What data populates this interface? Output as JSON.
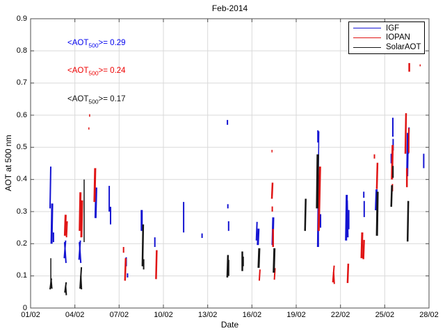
{
  "title": "Feb-2014",
  "axes": {
    "xlabel": "Date",
    "ylabel": "AOT at 500 nm"
  },
  "annotations": [
    {
      "series": "IGF",
      "prefix": "<AOT",
      "sub": "500",
      "suffix": ">= 0.29",
      "value": 0.29,
      "color": "#0000ee"
    },
    {
      "series": "IOPAN",
      "prefix": "<AOT",
      "sub": "500",
      "suffix": ">= 0.24",
      "value": 0.24,
      "color": "#ee0000"
    },
    {
      "series": "SolarAOT",
      "prefix": "<AOT",
      "sub": "500",
      "suffix": ">= 0.17",
      "value": 0.17,
      "color": "#111111"
    }
  ],
  "chart_data": {
    "type": "scatter",
    "title": "Feb-2014",
    "xlabel": "Date",
    "ylabel": "AOT at 500 nm",
    "xlim_days": [
      1,
      28
    ],
    "ylim": [
      0,
      0.9
    ],
    "grid": true,
    "legend_position": "top-right",
    "x_tick_labels": [
      "01/02",
      "04/02",
      "07/02",
      "10/02",
      "13/02",
      "16/02",
      "19/02",
      "22/02",
      "25/02",
      "28/02"
    ],
    "y_tick_labels": [
      "0",
      "0.1",
      "0.2",
      "0.3",
      "0.4",
      "0.5",
      "0.6",
      "0.7",
      "0.8",
      "0.9"
    ],
    "segment_format": [
      "day_of_feb",
      "aot_min",
      "aot_max",
      "px_width",
      "px_slant"
    ],
    "series": [
      {
        "name": "IGF",
        "color": "#1414d2",
        "mean_aot500": 0.29,
        "segments": [
          [
            2.32,
            0.31,
            0.44,
            2,
            1
          ],
          [
            2.42,
            0.2,
            0.325,
            3,
            1
          ],
          [
            2.55,
            0.205,
            0.235,
            2,
            0
          ],
          [
            3.28,
            0.155,
            0.21,
            2,
            2
          ],
          [
            3.4,
            0.14,
            0.205,
            2,
            -2
          ],
          [
            4.28,
            0.15,
            0.21,
            2,
            2
          ],
          [
            4.4,
            0.14,
            0.205,
            2,
            -2
          ],
          [
            5.4,
            0.28,
            0.375,
            3,
            1
          ],
          [
            6.33,
            0.3,
            0.38,
            2,
            0
          ],
          [
            6.42,
            0.26,
            0.315,
            2,
            0
          ],
          [
            7.48,
            0.13,
            0.158,
            2,
            0
          ],
          [
            7.57,
            0.095,
            0.108,
            2,
            0
          ],
          [
            8.53,
            0.24,
            0.305,
            3,
            0
          ],
          [
            9.42,
            0.19,
            0.22,
            2,
            0
          ],
          [
            11.37,
            0.235,
            0.33,
            2,
            0
          ],
          [
            12.62,
            0.218,
            0.232,
            2,
            0
          ],
          [
            14.34,
            0.57,
            0.585,
            2,
            0
          ],
          [
            14.37,
            0.31,
            0.323,
            2,
            0
          ],
          [
            14.42,
            0.24,
            0.27,
            2,
            0
          ],
          [
            16.3,
            0.21,
            0.268,
            2,
            1
          ],
          [
            16.4,
            0.196,
            0.247,
            3,
            1
          ],
          [
            17.4,
            0.196,
            0.282,
            3,
            1
          ],
          [
            20.44,
            0.19,
            0.55,
            1.5,
            2
          ],
          [
            20.47,
            0.515,
            0.553,
            2,
            0
          ],
          [
            20.5,
            0.19,
            0.245,
            2,
            0
          ],
          [
            20.65,
            0.25,
            0.292,
            2,
            0
          ],
          [
            22.38,
            0.21,
            0.352,
            3,
            1
          ],
          [
            22.48,
            0.22,
            0.335,
            3,
            -1
          ],
          [
            22.56,
            0.245,
            0.305,
            2,
            0
          ],
          [
            23.58,
            0.343,
            0.362,
            2,
            0
          ],
          [
            23.61,
            0.283,
            0.333,
            2,
            0
          ],
          [
            24.4,
            0.304,
            0.369,
            3,
            1
          ],
          [
            25.44,
            0.45,
            0.48,
            2,
            0
          ],
          [
            25.55,
            0.533,
            0.592,
            2,
            0
          ],
          [
            25.57,
            0.49,
            0.526,
            2,
            0
          ],
          [
            26.52,
            0.41,
            0.545,
            3,
            1
          ],
          [
            26.6,
            0.48,
            0.562,
            2,
            1
          ],
          [
            27.64,
            0.435,
            0.48,
            2,
            0
          ]
        ]
      },
      {
        "name": "IOPAN",
        "color": "#e01414",
        "mean_aot500": 0.24,
        "segments": [
          [
            3.33,
            0.225,
            0.29,
            3,
            1
          ],
          [
            3.43,
            0.22,
            0.27,
            2,
            1
          ],
          [
            4.33,
            0.24,
            0.36,
            3,
            1
          ],
          [
            4.44,
            0.22,
            0.335,
            3,
            1
          ],
          [
            4.95,
            0.555,
            0.562,
            1.5,
            0
          ],
          [
            5.0,
            0.595,
            0.603,
            1.5,
            0
          ],
          [
            5.33,
            0.33,
            0.435,
            3,
            1
          ],
          [
            7.3,
            0.172,
            0.19,
            2,
            0
          ],
          [
            7.4,
            0.085,
            0.155,
            2.5,
            1
          ],
          [
            9.5,
            0.09,
            0.18,
            2.5,
            1
          ],
          [
            16.5,
            0.085,
            0.12,
            2,
            1
          ],
          [
            17.35,
            0.34,
            0.39,
            2.5,
            1
          ],
          [
            17.36,
            0.484,
            0.492,
            1.5,
            0
          ],
          [
            17.38,
            0.3,
            0.316,
            2,
            0
          ],
          [
            17.43,
            0.19,
            0.246,
            2.5,
            0
          ],
          [
            17.52,
            0.088,
            0.124,
            2,
            1
          ],
          [
            20.52,
            0.24,
            0.44,
            3,
            2
          ],
          [
            21.48,
            0.08,
            0.132,
            2,
            2
          ],
          [
            21.58,
            0.075,
            0.112,
            2,
            -1
          ],
          [
            22.48,
            0.078,
            0.138,
            2.5,
            1
          ],
          [
            23.43,
            0.155,
            0.235,
            3,
            1
          ],
          [
            23.55,
            0.152,
            0.212,
            2.5,
            1
          ],
          [
            24.3,
            0.465,
            0.478,
            2,
            0
          ],
          [
            24.46,
            0.37,
            0.452,
            2.5,
            1
          ],
          [
            25.49,
            0.4,
            0.507,
            3,
            1
          ],
          [
            25.52,
            0.363,
            0.386,
            2,
            0
          ],
          [
            26.4,
            0.48,
            0.606,
            2.5,
            1
          ],
          [
            26.5,
            0.376,
            0.435,
            2.5,
            0
          ],
          [
            26.63,
            0.483,
            0.56,
            2,
            0
          ],
          [
            26.66,
            0.735,
            0.762,
            2.5,
            0
          ],
          [
            27.4,
            0.752,
            0.758,
            1.5,
            0
          ]
        ]
      },
      {
        "name": "SolarAOT",
        "color": "#161616",
        "mean_aot500": 0.17,
        "segments": [
          [
            2.37,
            0.063,
            0.155,
            1.5,
            0
          ],
          [
            2.32,
            0.058,
            0.092,
            2,
            2
          ],
          [
            2.44,
            0.06,
            0.085,
            2,
            -1
          ],
          [
            3.32,
            0.048,
            0.08,
            2,
            2
          ],
          [
            3.42,
            0.04,
            0.068,
            2,
            -1
          ],
          [
            4.35,
            0.06,
            0.127,
            2,
            2
          ],
          [
            4.45,
            0.058,
            0.1,
            2,
            -1
          ],
          [
            4.63,
            0.205,
            0.4,
            1.5,
            0
          ],
          [
            8.58,
            0.13,
            0.26,
            2.5,
            1
          ],
          [
            8.66,
            0.12,
            0.152,
            2,
            0
          ],
          [
            14.33,
            0.095,
            0.165,
            2.5,
            1
          ],
          [
            14.42,
            0.1,
            0.15,
            2,
            0
          ],
          [
            15.35,
            0.115,
            0.176,
            2.5,
            0
          ],
          [
            15.42,
            0.13,
            0.16,
            1.5,
            0
          ],
          [
            16.45,
            0.125,
            0.186,
            3,
            1
          ],
          [
            17.48,
            0.11,
            0.186,
            3,
            1
          ],
          [
            19.6,
            0.24,
            0.34,
            2.5,
            1
          ],
          [
            20.42,
            0.31,
            0.478,
            3.5,
            1
          ],
          [
            24.47,
            0.225,
            0.362,
            3,
            1
          ],
          [
            25.44,
            0.315,
            0.382,
            2.5,
            1
          ],
          [
            25.56,
            0.405,
            0.442,
            2,
            0
          ],
          [
            26.55,
            0.207,
            0.333,
            2.5,
            1
          ]
        ]
      }
    ]
  }
}
